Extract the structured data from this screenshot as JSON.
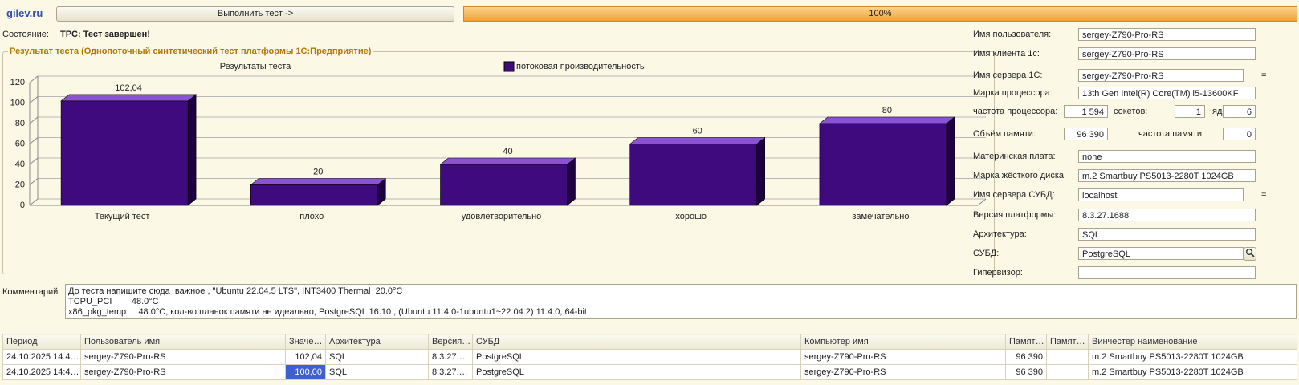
{
  "header": {
    "link": "gilev.ru",
    "button": "Выполнить тест ->",
    "progress": "100%"
  },
  "status": {
    "label": "Состояние:",
    "value": "TPC: Тест завершен!"
  },
  "group_title": "Результат теста (Однопоточный синтетический тест платформы 1С:Предприятие)",
  "chart_data": {
    "type": "bar",
    "title": "Результаты теста",
    "categories": [
      "Текущий тест",
      "плохо",
      "удовлетворительно",
      "хорошо",
      "замечательно"
    ],
    "series": [
      {
        "name": "потоковая производительность",
        "color": "#3f0a7e",
        "values": [
          102.04,
          20,
          40,
          60,
          80
        ],
        "value_labels": [
          "102,04",
          "20",
          "40",
          "60",
          "80"
        ]
      }
    ],
    "ylim": [
      0,
      120
    ],
    "yticks": [
      0,
      20,
      40,
      60,
      80,
      100,
      120
    ],
    "grid": true,
    "legend": "top"
  },
  "fields": [
    {
      "label": "Имя пользователя:",
      "value": "sergey-Z790-Pro-RS"
    },
    {
      "label": "Имя клиента 1с:",
      "value": "sergey-Z790-Pro-RS"
    },
    {
      "label": "Имя сервера 1С:",
      "value": "sergey-Z790-Pro-RS",
      "suffix": "="
    },
    {
      "label": "Марка процессора:",
      "value": "13th Gen Intel(R) Core(TM) i5-13600KF"
    },
    {
      "label": "частота процессора:",
      "value": "1 594"
    },
    {
      "label": "сокетов:",
      "value": "1"
    },
    {
      "label": "ядер:",
      "value": "6"
    },
    {
      "label": "Объём памяти:",
      "value": "96 390"
    },
    {
      "label": "частота памяти:",
      "value": "0"
    },
    {
      "label": "Материнская плата:",
      "value": "none"
    },
    {
      "label": "Марка жёсткого диска:",
      "value": "m.2 Smartbuy PS5013-2280T 1024GB"
    },
    {
      "label": "Имя сервера СУБД:",
      "value": "localhost",
      "suffix": "="
    },
    {
      "label": "Версия платформы:",
      "value": "8.3.27.1688"
    },
    {
      "label": "Архитектура:",
      "value": "SQL"
    },
    {
      "label": "СУБД:",
      "value": "PostgreSQL"
    },
    {
      "label": "Гипервизор:"
    }
  ],
  "comment": {
    "label": "Комментарий:",
    "lines": [
      "До теста напишите сюда  важное , \"Ubuntu 22.04.5 LTS\", INT3400 Thermal  20.0°C",
      "TCPU_PCI        48.0°C",
      "x86_pkg_temp     48.0°C, кол-во планок памяти не идеально, PostgreSQL 16.10 , (Ubuntu 11.4.0-1ubuntu1~22.04.2) 11.4.0, 64-bit"
    ]
  },
  "table": {
    "columns": [
      "Период",
      "Пользователь имя",
      "Значе…",
      "Архитектура",
      "Версия…",
      "СУБД",
      "Компьютер имя",
      "Памят…",
      "Памят…",
      "Винчестер наименование"
    ],
    "rows": [
      [
        "24.10.2025 14:4…",
        "sergey-Z790-Pro-RS",
        "102,04",
        "SQL",
        "8.3.27.…",
        "PostgreSQL",
        "sergey-Z790-Pro-RS",
        "96 390",
        null,
        "m.2 Smartbuy PS5013-2280T 1024GB"
      ],
      [
        "24.10.2025 14:4…",
        "sergey-Z790-Pro-RS",
        "100,00",
        "SQL",
        "8.3.27.…",
        "PostgreSQL",
        "sergey-Z790-Pro-RS",
        "96 390",
        null,
        "m.2 Smartbuy PS5013-2280T 1024GB"
      ]
    ]
  }
}
